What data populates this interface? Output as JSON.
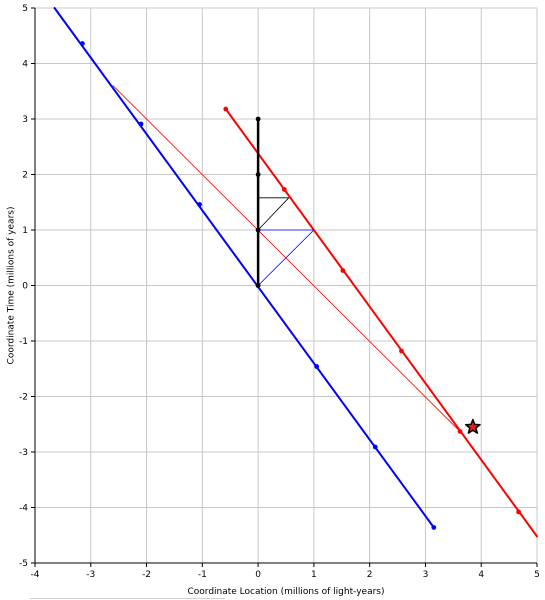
{
  "chart_data": {
    "type": "line",
    "xlabel": "Coordinate Location (millions of light-years)",
    "ylabel": "Coordinate Time (millions of years)",
    "xlim": [
      -4,
      5
    ],
    "ylim": [
      -5,
      5
    ],
    "xticks": [
      -4,
      -3,
      -2,
      -1,
      0,
      1,
      2,
      3,
      4,
      5
    ],
    "yticks": [
      -5,
      -4,
      -3,
      -2,
      -1,
      0,
      1,
      2,
      3,
      4,
      5
    ],
    "grid": true,
    "series": [
      {
        "color": "#0000ff",
        "width": 2,
        "x": [
          -3.65,
          3.15
        ],
        "y": [
          5.0,
          -4.36
        ],
        "markers": [
          [
            -3.15,
            4.36
          ],
          [
            -2.1,
            2.91
          ],
          [
            -1.05,
            1.46
          ],
          [
            0,
            0
          ],
          [
            1.05,
            -1.46
          ],
          [
            2.1,
            -2.91
          ],
          [
            3.15,
            -4.36
          ]
        ]
      },
      {
        "color": "#ff0000",
        "width": 2,
        "x": [
          -0.58,
          5.0
        ],
        "y": [
          3.18,
          -4.52
        ],
        "markers": [
          [
            -0.58,
            3.18
          ],
          [
            0.47,
            1.73
          ],
          [
            1.52,
            0.27
          ],
          [
            2.57,
            -1.18
          ],
          [
            3.62,
            -2.63
          ],
          [
            4.67,
            -4.08
          ]
        ]
      },
      {
        "color": "#000000",
        "width": 2.5,
        "x": [
          0,
          0
        ],
        "y": [
          0,
          3
        ],
        "markers": [
          [
            0,
            0
          ],
          [
            0,
            1
          ],
          [
            0,
            2
          ],
          [
            0,
            3
          ]
        ]
      },
      {
        "color": "#ff0000",
        "width": 0.8,
        "x": [
          -2.6,
          3.62
        ],
        "y": [
          3.6,
          -2.63
        ],
        "markers": []
      },
      {
        "color": "#0000ff",
        "width": 0.8,
        "x": [
          0,
          1.0
        ],
        "y": [
          0,
          1.0
        ],
        "markers": []
      },
      {
        "color": "#0000ff",
        "width": 0.8,
        "x": [
          0,
          1.0
        ],
        "y": [
          1.0,
          1.0
        ],
        "markers": []
      },
      {
        "color": "#000000",
        "width": 0.8,
        "x": [
          0,
          0.55
        ],
        "y": [
          1.0,
          1.58
        ],
        "markers": []
      },
      {
        "color": "#000000",
        "width": 0.8,
        "x": [
          0,
          0.55
        ],
        "y": [
          1.58,
          1.58
        ],
        "markers": []
      }
    ],
    "star": {
      "x": 3.85,
      "y": -2.55,
      "fill": "#e02020",
      "stroke": "#000000"
    }
  }
}
